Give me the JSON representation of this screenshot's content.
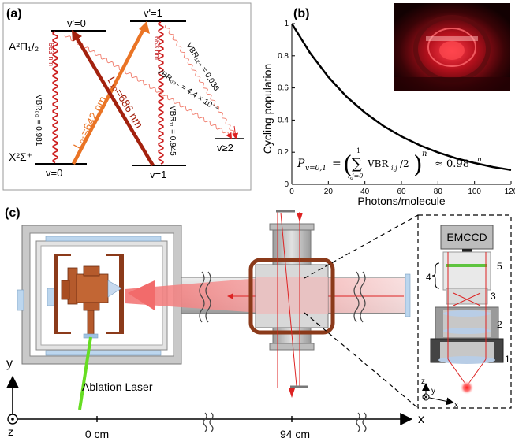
{
  "panel_a": {
    "label": "(a)",
    "state_excited": "A²Π₁/₂",
    "state_ground": "X²Σ⁺",
    "lvl_v0_up": "v'=0",
    "lvl_v1_up": "v'=1",
    "lvl_v0_low": "v=0",
    "lvl_v1_low": "v=1",
    "lvl_v2_low": "v≥2",
    "wl_663_a": "663 nm",
    "wl_663_b": "663 nm",
    "laser_l01": "L₀₁=642 nm",
    "laser_l10": "L₁₀=686 nm",
    "vbr00": "VBR₀₀ = 0.981",
    "vbr11": "VBR₁₁ = 0.945",
    "vbr02": "VBR₀₂₊ = 4.4 × 10⁻⁴",
    "vbr12": "VBR₁₂₊ = 0.036",
    "colors": {
      "l01": "#ea7425",
      "l10": "#a3210e",
      "wave": "#cc1c1c",
      "wave_light": "#f07b6b"
    }
  },
  "panel_b": {
    "label": "(b)",
    "ylabel": "Cycling population",
    "xlabel": "Photons/molecule",
    "formula": "P_{v=0,1} = (Σ VBR_{i,j}/2)^n ≈ 0.98^n",
    "formula_lhs": "P",
    "formula_sub": "v=0,1",
    "formula_sum_top": "1",
    "formula_sum_bottom": "i,j=0",
    "formula_vbr": "VBR",
    "formula_vbr_sub": "i,j",
    "formula_div": "/2",
    "formula_rhs": "≈ 0.98",
    "formula_n": "n",
    "photo_icon": "vacuum-chamber-photo"
  },
  "chart_data": {
    "type": "line",
    "title": "",
    "xlabel": "Photons/molecule",
    "ylabel": "Cycling population",
    "xlim": [
      0,
      120
    ],
    "ylim": [
      0,
      1
    ],
    "x_ticks": [
      "0",
      "20",
      "40",
      "60",
      "80",
      "100",
      "120"
    ],
    "y_ticks": [
      "0",
      "0.2",
      "0.4",
      "0.6",
      "0.8",
      "1"
    ],
    "series": [
      {
        "x": [
          0,
          10,
          20,
          30,
          40,
          50,
          60,
          70,
          80,
          90,
          100,
          110,
          120
        ],
        "y": [
          1.0,
          0.817,
          0.668,
          0.545,
          0.446,
          0.364,
          0.298,
          0.243,
          0.199,
          0.162,
          0.133,
          0.108,
          0.089
        ]
      }
    ]
  },
  "panel_c": {
    "label": "(c)",
    "ablation": "Ablation Laser",
    "axis_x": "x",
    "axis_y": "y",
    "axis_z": "z",
    "tick_0": "0 cm",
    "tick_94": "94 cm",
    "inset_camera": "EMCCD",
    "inset_1": "1",
    "inset_2": "2",
    "inset_3": "3",
    "inset_4": "4",
    "inset_5": "5",
    "inset_axis_z": "z",
    "inset_axis_y": "y",
    "inset_axis_x": "x"
  }
}
